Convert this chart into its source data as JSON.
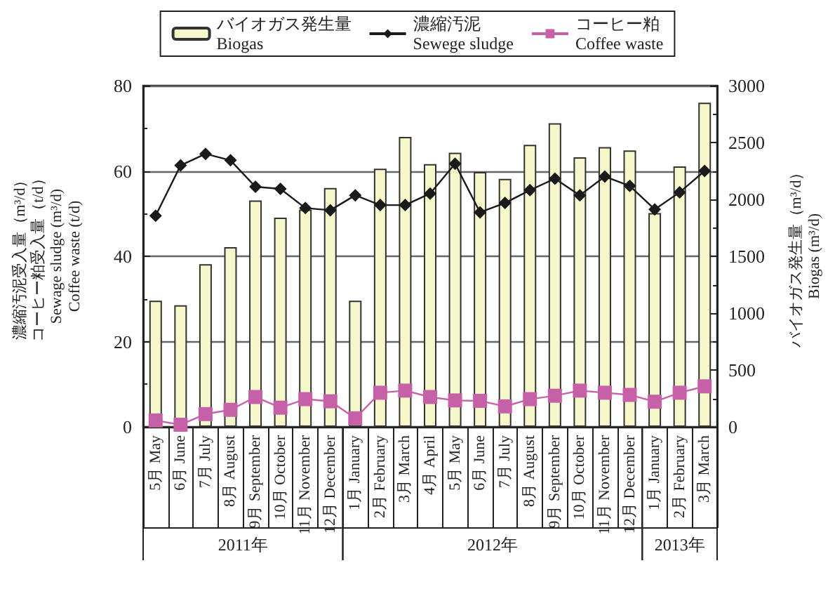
{
  "chart_data": {
    "type": "bar",
    "ylabel": "濃縮汚泥受入量（m³/d）コーヒー粕受入量（t/d）\nSewage sludge (m³/d)\nCoffee waste (t/d)",
    "y2label": "バイオガス発生量（m³/d）\nBiogas (m³/d)",
    "categories": [
      "5月 May",
      "6月 June",
      "7月 July",
      "8月 August",
      "9月 September",
      "10月 October",
      "11月 November",
      "12月 December",
      "1月 January",
      "2月 February",
      "3月 March",
      "4月 April",
      "5月 May",
      "6月 June",
      "7月 July",
      "8月 August",
      "9月 September",
      "10月 October",
      "11月 November",
      "12月 December",
      "1月 January",
      "2月 February",
      "3月 March"
    ],
    "annotations": [
      "2011年",
      "2012年",
      "2013年"
    ],
    "series": [
      {
        "name": "バイオガス発生量\nBiogas",
        "axis": "y2",
        "color": "#f7f7cc",
        "values": [
          1110,
          1070,
          1430,
          1580,
          1990,
          1840,
          1910,
          2100,
          1110,
          2270,
          2550,
          2310,
          2410,
          2240,
          2180,
          2480,
          2670,
          2370,
          2460,
          2430,
          1880,
          2290,
          2850
        ]
      },
      {
        "name": "濃縮汚泥\nSewege sludge",
        "type": "line",
        "marker": "diamond",
        "color": "#1a1a1a",
        "values": [
          49.5,
          61.3,
          64,
          62.5,
          56.3,
          55.8,
          51.3,
          50.8,
          54.3,
          52,
          52,
          54.7,
          61.7,
          50.3,
          52.5,
          55.5,
          58.2,
          54.3,
          58.7,
          56.5,
          51,
          55,
          60
        ]
      },
      {
        "name": "コーヒー粕\nCoffee waste",
        "type": "line",
        "marker": "square",
        "color": "#c661a8",
        "values": [
          1.5,
          0.5,
          3,
          4,
          7,
          4.5,
          6.5,
          6,
          2,
          8,
          8.5,
          7,
          6.2,
          6.1,
          4.8,
          6.5,
          7.3,
          8.5,
          8,
          7.5,
          5.9,
          8,
          9.5
        ]
      }
    ],
    "ylim": [
      0,
      80
    ],
    "yticks": [
      0,
      20,
      40,
      60,
      80
    ],
    "y2lim": [
      0,
      3000
    ],
    "y2ticks": [
      0,
      500,
      1000,
      1500,
      2000,
      2500,
      3000
    ],
    "grid": "y",
    "legend": "top"
  }
}
